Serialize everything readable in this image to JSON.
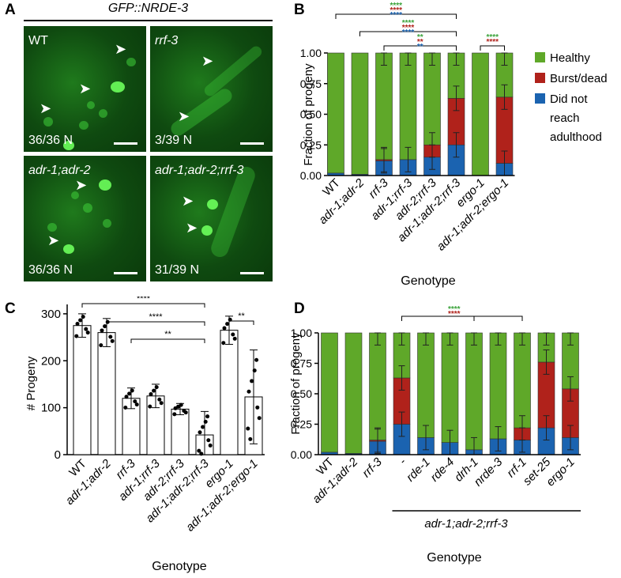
{
  "panel_labels": {
    "a": "A",
    "b": "B",
    "c": "C",
    "d": "D"
  },
  "panel_a": {
    "header": "GFP::NRDE-3",
    "tiles": [
      {
        "name": "WT",
        "count": "36/36 N"
      },
      {
        "name": "rrf-3",
        "count": "3/39  N"
      },
      {
        "name": "adr-1;adr-2",
        "count": "36/36 N"
      },
      {
        "name": "adr-1;adr-2;rrf-3",
        "count": "31/39  N"
      }
    ]
  },
  "colors": {
    "healthy": "#5fa829",
    "burst": "#b0221b",
    "not_adult": "#1b63b0",
    "star_green": "#3aa33a",
    "star_red": "#b0221b",
    "star_blue": "#1b63b0"
  },
  "chart_data": [
    {
      "panel": "B",
      "type": "bar",
      "stacked": true,
      "categories": [
        "WT",
        "adr-1;adr-2",
        "rrf-3",
        "adr-1;rrf-3",
        "adr-2;rrf-3",
        "adr-1;adr-2;rrf-3",
        "ergo-1",
        "adr-1;adr-2;ergo-1"
      ],
      "series": [
        {
          "name": "Did not reach adulthood",
          "values": [
            0.02,
            0.01,
            0.12,
            0.13,
            0.15,
            0.25,
            0.0,
            0.1
          ]
        },
        {
          "name": "Burst/dead",
          "values": [
            0.0,
            0.0,
            0.01,
            0.0,
            0.1,
            0.38,
            0.0,
            0.54
          ]
        },
        {
          "name": "Healthy",
          "values": [
            0.98,
            0.99,
            0.87,
            0.87,
            0.75,
            0.37,
            1.0,
            0.36
          ]
        }
      ],
      "errors": [
        0.0,
        0.0,
        0.1,
        0.1,
        0.1,
        0.1,
        0.0,
        0.1
      ],
      "ylabel": "Fraction of progeny",
      "xlabel": "Genotype",
      "ylim": [
        0,
        1
      ],
      "yticks": [
        "0.00",
        "0.25",
        "0.50",
        "0.75",
        "1.00"
      ],
      "legend": [
        "Healthy",
        "Burst/dead",
        "Did not reach adulthood"
      ],
      "legend_placement": "right",
      "significance": [
        "****",
        "****",
        "**",
        "****"
      ]
    },
    {
      "panel": "C",
      "type": "bar",
      "categories": [
        "WT",
        "adr-1;adr-2",
        "rrf-3",
        "adr-1;rrf-3",
        "adr-2;rrf-3",
        "adr-1;adr-2;rrf-3",
        "ergo-1",
        "adr-1;adr-2;ergo-1"
      ],
      "values": [
        275,
        260,
        120,
        125,
        97,
        42,
        265,
        123
      ],
      "errors": [
        25,
        30,
        22,
        25,
        12,
        50,
        30,
        100
      ],
      "ylabel": "# Progeny",
      "xlabel": "Genotype",
      "ylim": [
        0,
        320
      ],
      "yticks": [
        "0",
        "100",
        "200",
        "300"
      ],
      "significance": [
        "****",
        "****",
        "**",
        "**"
      ]
    },
    {
      "panel": "D",
      "type": "bar",
      "stacked": true,
      "categories": [
        "WT",
        "adr-1;adr-2",
        "rrf-3",
        "-",
        "rde-1",
        "rde-4",
        "drh-1",
        "nrde-3",
        "rrf-1",
        "set-25",
        "ergo-1"
      ],
      "series": [
        {
          "name": "Did not reach adulthood",
          "values": [
            0.02,
            0.01,
            0.11,
            0.25,
            0.14,
            0.1,
            0.04,
            0.13,
            0.12,
            0.22,
            0.14
          ]
        },
        {
          "name": "Burst/dead",
          "values": [
            0.0,
            0.0,
            0.01,
            0.38,
            0.0,
            0.0,
            0.0,
            0.0,
            0.1,
            0.54,
            0.4
          ]
        },
        {
          "name": "Healthy",
          "values": [
            0.98,
            0.99,
            0.88,
            0.37,
            0.86,
            0.9,
            0.96,
            0.87,
            0.78,
            0.24,
            0.46
          ]
        }
      ],
      "errors": [
        0.0,
        0.0,
        0.1,
        0.1,
        0.1,
        0.1,
        0.1,
        0.1,
        0.1,
        0.1,
        0.1
      ],
      "group_label": "adr-1;adr-2;rrf-3",
      "ylabel": "Fraction of progeny",
      "xlabel": "Genotype",
      "ylim": [
        0,
        1
      ],
      "yticks": [
        "0.00",
        "0.25",
        "0.50",
        "0.75",
        "1.00"
      ],
      "significance": [
        "****",
        "****"
      ]
    }
  ]
}
